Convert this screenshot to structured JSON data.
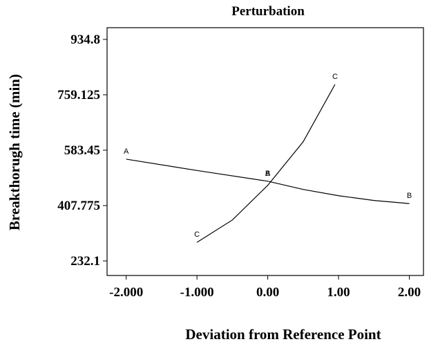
{
  "chart_data": {
    "type": "line",
    "title": "Perturbation",
    "x_label": "Deviation from Reference Point",
    "y_label": "Breakthorugh time (min)",
    "xlim": [
      -2.27,
      2.2
    ],
    "ylim": [
      186,
      972
    ],
    "xticks": [
      {
        "value": -2,
        "label": "-2.000"
      },
      {
        "value": -1,
        "label": "-1.000"
      },
      {
        "value": 0,
        "label": "0.00"
      },
      {
        "value": 1,
        "label": "1.00"
      },
      {
        "value": 2,
        "label": "2.00"
      }
    ],
    "yticks": [
      232.1,
      407.775,
      583.45,
      759.125,
      934.8
    ],
    "series": [
      {
        "name": "A",
        "color": "#000000",
        "x": [
          -2,
          -1,
          0
        ],
        "values": [
          555,
          519,
          485
        ]
      },
      {
        "name": "B",
        "color": "#000000",
        "x": [
          0,
          0.5,
          1,
          1.5,
          2
        ],
        "values": [
          485,
          459,
          439,
          424,
          414
        ]
      },
      {
        "name": "C",
        "color": "#000000",
        "x": [
          -1,
          -0.5,
          0,
          0.5,
          0.95
        ],
        "values": [
          291,
          362,
          472,
          610,
          792
        ]
      }
    ]
  }
}
